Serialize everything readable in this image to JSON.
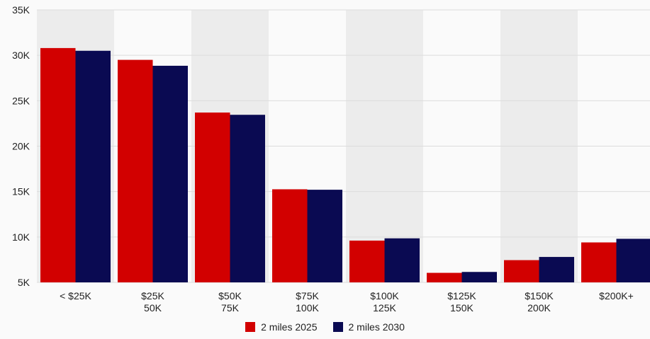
{
  "chart_data": {
    "type": "bar",
    "title": "",
    "xlabel": "",
    "ylabel": "",
    "categories": [
      [
        "< $25K"
      ],
      [
        "$25K",
        "50K"
      ],
      [
        "$50K",
        "75K"
      ],
      [
        "$75K",
        "100K"
      ],
      [
        "$100K",
        "125K"
      ],
      [
        "$125K",
        "150K"
      ],
      [
        "$150K",
        "200K"
      ],
      [
        "$200K+"
      ]
    ],
    "series": [
      {
        "name": "2 miles 2025",
        "color": "#d20000",
        "values": [
          30800,
          29500,
          23700,
          15250,
          9600,
          6050,
          7450,
          9400
        ]
      },
      {
        "name": "2 miles 2030",
        "color": "#0a0a52",
        "values": [
          30500,
          28850,
          23450,
          15200,
          9850,
          6150,
          7800,
          9800
        ]
      }
    ],
    "ylim": [
      5000,
      35000
    ],
    "yticks": [
      5000,
      10000,
      15000,
      20000,
      25000,
      30000,
      35000
    ],
    "ytick_labels": [
      "5K",
      "10K",
      "15K",
      "20K",
      "25K",
      "30K",
      "35K"
    ],
    "grid": true,
    "alternating_band_color": "#ececec",
    "legend_position": "bottom-center"
  }
}
